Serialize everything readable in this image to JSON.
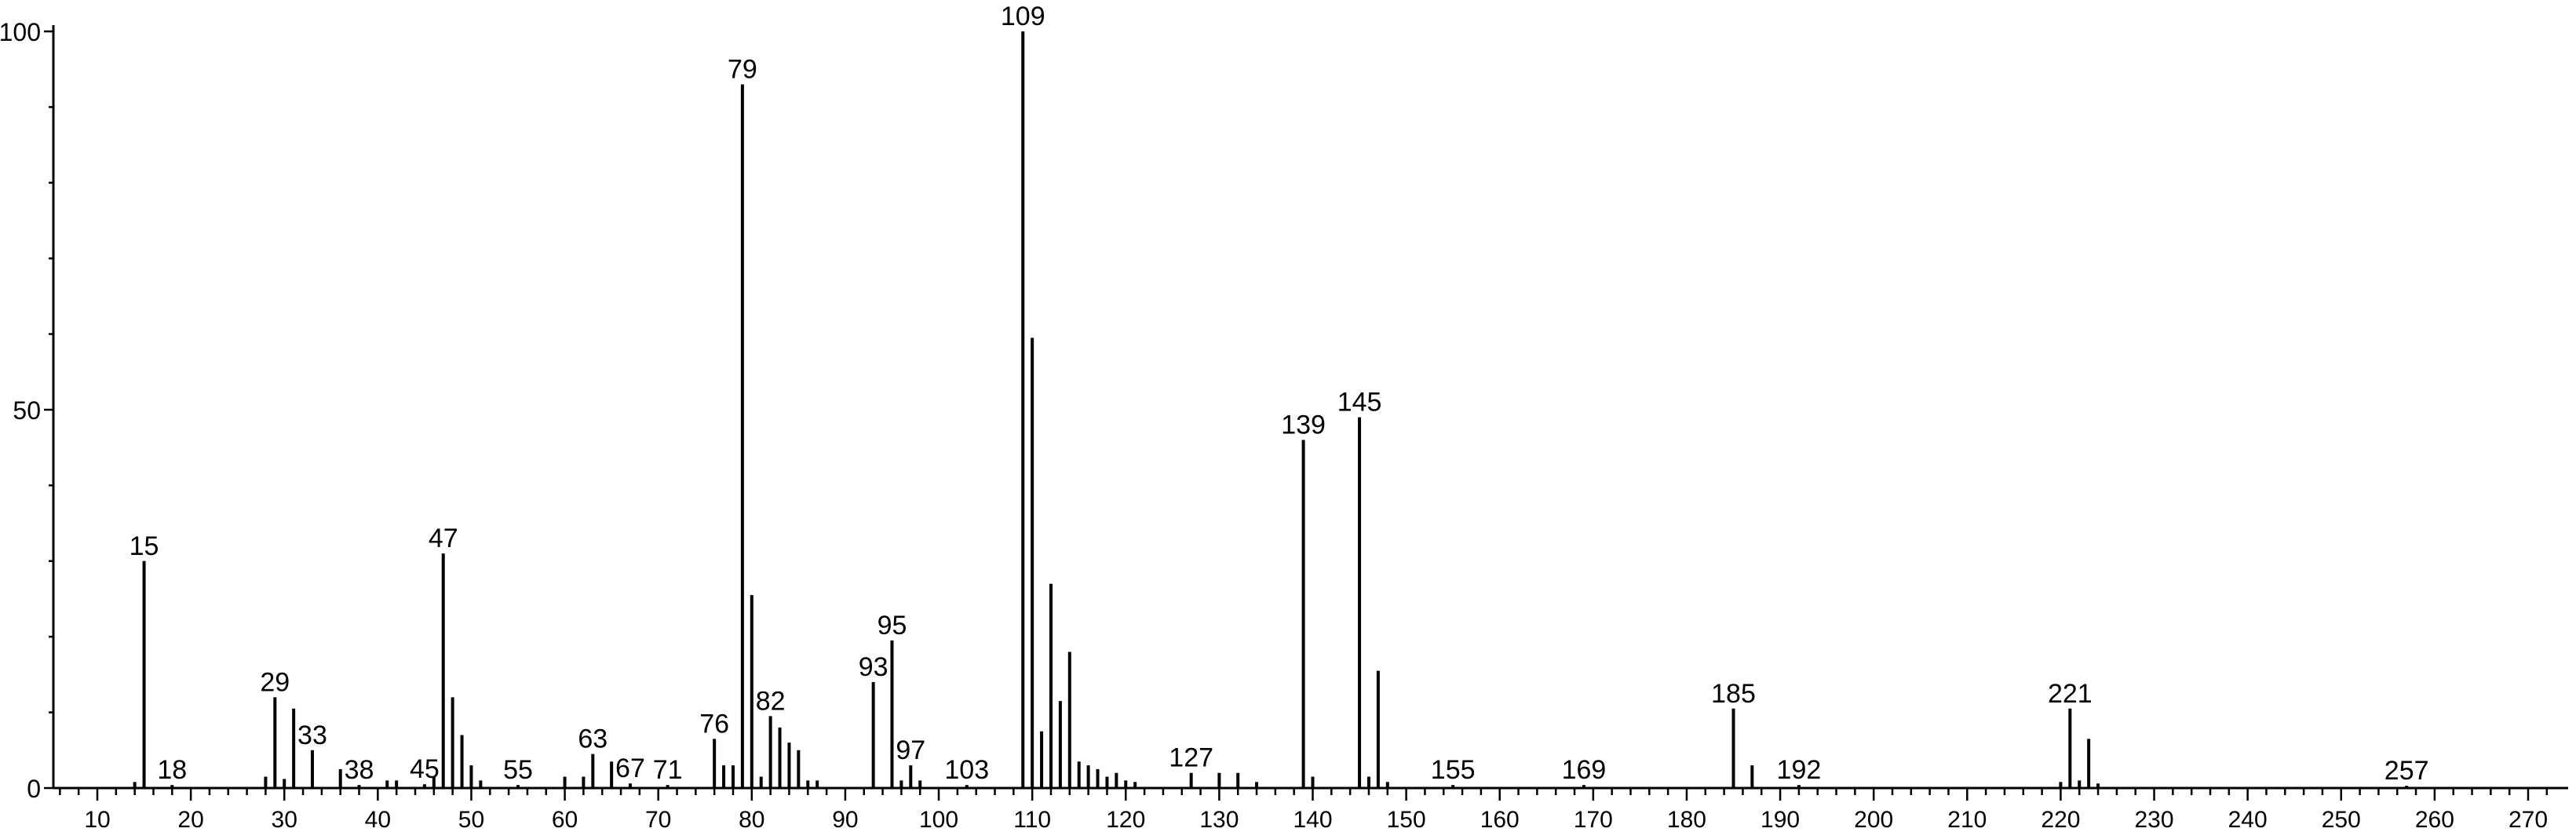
{
  "chart_data": {
    "type": "bar",
    "title": "",
    "xlabel": "",
    "ylabel": "",
    "xlim": [
      5,
      273
    ],
    "ylim": [
      0,
      100
    ],
    "x_ticks": [
      10,
      20,
      30,
      40,
      50,
      60,
      70,
      80,
      90,
      100,
      110,
      120,
      130,
      140,
      150,
      160,
      170,
      180,
      190,
      200,
      210,
      220,
      230,
      240,
      250,
      260,
      270
    ],
    "y_ticks": [
      0,
      50,
      100
    ],
    "peaks": [
      {
        "x": 14,
        "y": 0.8
      },
      {
        "x": 15,
        "y": 30,
        "label": "15"
      },
      {
        "x": 18,
        "y": 0.4,
        "label": "18"
      },
      {
        "x": 28,
        "y": 1.5
      },
      {
        "x": 29,
        "y": 12,
        "label": "29"
      },
      {
        "x": 30,
        "y": 1.2
      },
      {
        "x": 31,
        "y": 10.5
      },
      {
        "x": 33,
        "y": 5,
        "label": "33"
      },
      {
        "x": 36,
        "y": 2.5
      },
      {
        "x": 38,
        "y": 0.4,
        "label": "38"
      },
      {
        "x": 41,
        "y": 1
      },
      {
        "x": 42,
        "y": 1
      },
      {
        "x": 45,
        "y": 0.5,
        "label": "45"
      },
      {
        "x": 46,
        "y": 1.5
      },
      {
        "x": 47,
        "y": 31,
        "label": "47"
      },
      {
        "x": 48,
        "y": 12
      },
      {
        "x": 49,
        "y": 7
      },
      {
        "x": 50,
        "y": 3
      },
      {
        "x": 51,
        "y": 1
      },
      {
        "x": 55,
        "y": 0.4,
        "label": "55"
      },
      {
        "x": 60,
        "y": 1.5
      },
      {
        "x": 62,
        "y": 1.5
      },
      {
        "x": 63,
        "y": 4.5,
        "label": "63"
      },
      {
        "x": 65,
        "y": 3.5
      },
      {
        "x": 67,
        "y": 0.6,
        "label": "67"
      },
      {
        "x": 71,
        "y": 0.4,
        "label": "71"
      },
      {
        "x": 76,
        "y": 6.5,
        "label": "76"
      },
      {
        "x": 77,
        "y": 3
      },
      {
        "x": 78,
        "y": 3
      },
      {
        "x": 79,
        "y": 93,
        "label": "79"
      },
      {
        "x": 80,
        "y": 25.5
      },
      {
        "x": 81,
        "y": 1.5
      },
      {
        "x": 82,
        "y": 9.5,
        "label": "82"
      },
      {
        "x": 83,
        "y": 8
      },
      {
        "x": 84,
        "y": 6
      },
      {
        "x": 85,
        "y": 5
      },
      {
        "x": 86,
        "y": 1
      },
      {
        "x": 87,
        "y": 1
      },
      {
        "x": 93,
        "y": 14,
        "label": "93"
      },
      {
        "x": 95,
        "y": 19.5,
        "label": "95"
      },
      {
        "x": 96,
        "y": 1
      },
      {
        "x": 97,
        "y": 3,
        "label": "97"
      },
      {
        "x": 98,
        "y": 1
      },
      {
        "x": 103,
        "y": 0.4,
        "label": "103"
      },
      {
        "x": 109,
        "y": 100,
        "label": "109"
      },
      {
        "x": 110,
        "y": 59.5
      },
      {
        "x": 111,
        "y": 7.5
      },
      {
        "x": 112,
        "y": 27
      },
      {
        "x": 113,
        "y": 11.5
      },
      {
        "x": 114,
        "y": 18
      },
      {
        "x": 115,
        "y": 3.5
      },
      {
        "x": 116,
        "y": 3
      },
      {
        "x": 117,
        "y": 2.5
      },
      {
        "x": 118,
        "y": 1.5
      },
      {
        "x": 119,
        "y": 2
      },
      {
        "x": 120,
        "y": 1
      },
      {
        "x": 121,
        "y": 0.8
      },
      {
        "x": 127,
        "y": 2,
        "label": "127"
      },
      {
        "x": 130,
        "y": 2
      },
      {
        "x": 132,
        "y": 2
      },
      {
        "x": 134,
        "y": 0.8
      },
      {
        "x": 139,
        "y": 46,
        "label": "139"
      },
      {
        "x": 140,
        "y": 1.5
      },
      {
        "x": 145,
        "y": 49,
        "label": "145"
      },
      {
        "x": 146,
        "y": 1.5
      },
      {
        "x": 147,
        "y": 15.5
      },
      {
        "x": 148,
        "y": 0.8
      },
      {
        "x": 155,
        "y": 0.4,
        "label": "155"
      },
      {
        "x": 169,
        "y": 0.4,
        "label": "169"
      },
      {
        "x": 185,
        "y": 10.5,
        "label": "185"
      },
      {
        "x": 187,
        "y": 3
      },
      {
        "x": 192,
        "y": 0.4,
        "label": "192"
      },
      {
        "x": 220,
        "y": 0.8
      },
      {
        "x": 221,
        "y": 10.5,
        "label": "221"
      },
      {
        "x": 222,
        "y": 1
      },
      {
        "x": 223,
        "y": 6.5
      },
      {
        "x": 224,
        "y": 0.6
      },
      {
        "x": 257,
        "y": 0.3,
        "label": "257"
      }
    ]
  }
}
